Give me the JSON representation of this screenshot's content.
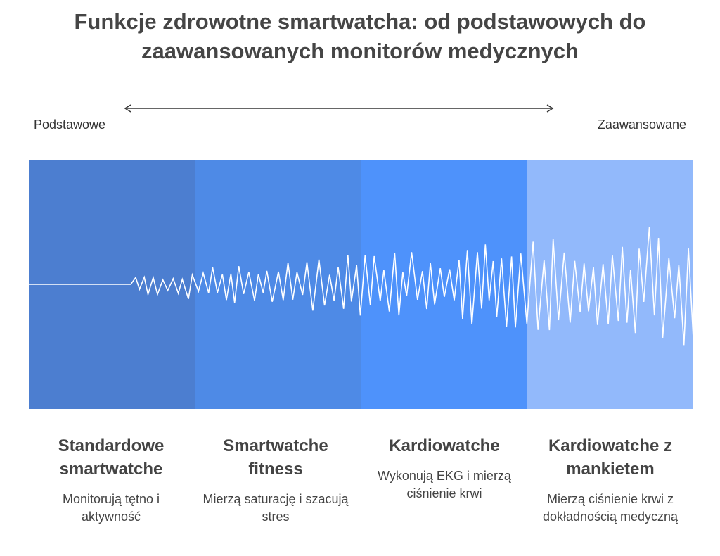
{
  "title": "Funkcje zdrowotne smartwatcha: od podstawowych do zaawansowanych monitorów medycznych",
  "scale": {
    "left": "Podstawowe",
    "right": "Zaawansowane"
  },
  "stages": [
    {
      "title": "Standardowe smartwatche",
      "description": "Monitorują tętno i aktywność"
    },
    {
      "title": "Smartwatche fitness",
      "description": "Mierzą saturację i szacują stres"
    },
    {
      "title": "Kardiowatche",
      "description": "Wykonują EKG i mierzą ciśnienie krwi"
    },
    {
      "title": "Kardiowatche z mankietem",
      "description": "Mierzą ciśnienie krwi z dokładnością medyczną"
    }
  ]
}
